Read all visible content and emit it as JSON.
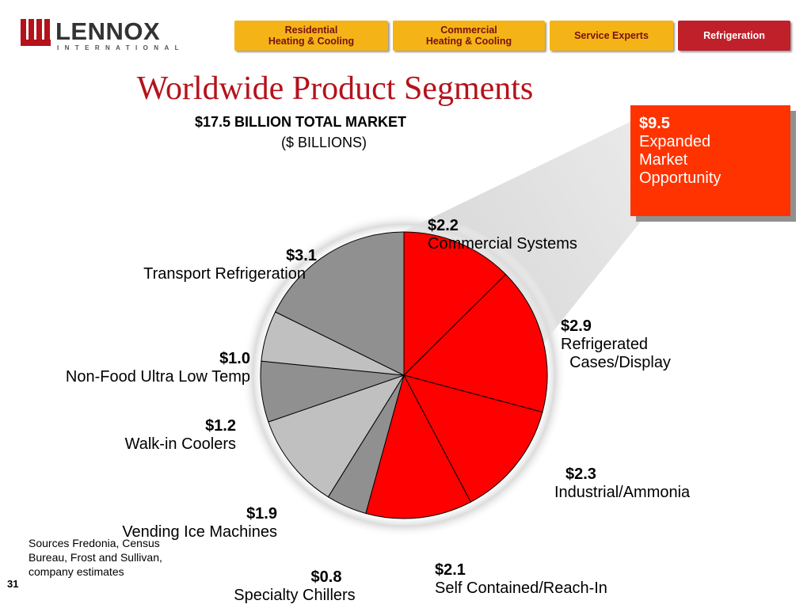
{
  "logo": {
    "name": "LENNOX",
    "sub": "INTERNATIONAL"
  },
  "nav": [
    {
      "label": "Residential\nHeating & Cooling"
    },
    {
      "label": "Commercial\nHeating & Cooling"
    },
    {
      "label": "Service Experts"
    },
    {
      "label": "Refrigeration"
    }
  ],
  "colors": {
    "brand": "#b5121b",
    "nav_yellow": "#f4b418",
    "nav_red": "#c0202a",
    "slice_red": "#ff0000",
    "slice_gray": "#909090",
    "slice_light": "#c0c0c0",
    "callout": "#ff3300"
  },
  "chart_data": {
    "type": "pie",
    "title": "Worldwide Product Segments",
    "subtitle": "$17.5 BILLION  TOTAL MARKET",
    "unit_label": "($ BILLIONS)",
    "total": 17.5,
    "slices": [
      {
        "label": "Commercial Systems",
        "value_label": "$2.2",
        "value": 2.2,
        "color": "#ff0000"
      },
      {
        "label": "Refrigerated\n  Cases/Display",
        "value_label": "$2.9",
        "value": 2.9,
        "color": "#ff0000"
      },
      {
        "label": "Industrial/Ammonia",
        "value_label": "$2.3",
        "value": 2.3,
        "color": "#ff0000"
      },
      {
        "label": "Self Contained/Reach-In",
        "value_label": "$2.1",
        "value": 2.1,
        "color": "#ff0000"
      },
      {
        "label": "Specialty Chillers",
        "value_label": "$0.8",
        "value": 0.8,
        "color": "#909090"
      },
      {
        "label": "Vending Ice Machines",
        "value_label": "$1.9",
        "value": 1.9,
        "color": "#c0c0c0"
      },
      {
        "label": "Walk-in Coolers",
        "value_label": "$1.2",
        "value": 1.2,
        "color": "#909090"
      },
      {
        "label": "Non-Food Ultra Low Temp",
        "value_label": "$1.0",
        "value": 1.0,
        "color": "#c0c0c0"
      },
      {
        "label": "Transport Refrigeration",
        "value_label": "$3.1",
        "value": 3.1,
        "color": "#909090"
      }
    ],
    "callout": {
      "value_label": "$9.5",
      "lines": [
        "Expanded",
        "Market",
        "Opportunity"
      ]
    }
  },
  "sources": "Sources  Fredonia, Census\nBureau, Frost and Sullivan,\ncompany estimates",
  "page_number": "31"
}
